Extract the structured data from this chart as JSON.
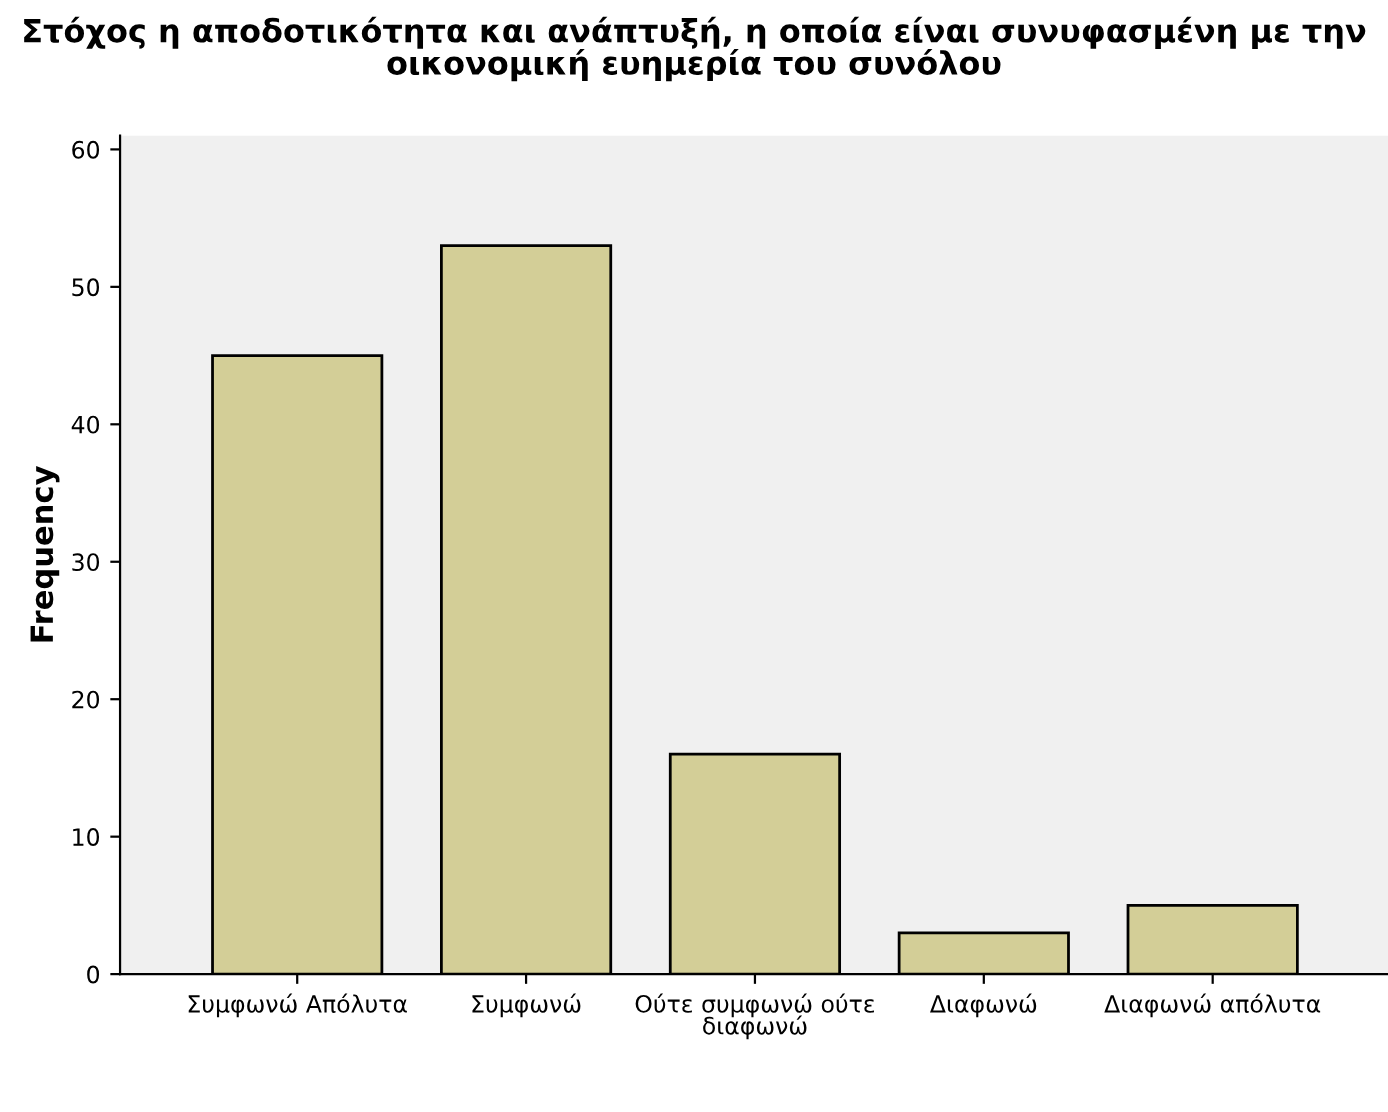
{
  "chart_data": {
    "type": "bar",
    "title": "Στόχος η αποδοτικότητα και ανάπτυξή, η οποία είναι συνυφασμένη με την\nοικονομική ευημερία του συνόλου",
    "ylabel": "Frequency",
    "categories": [
      "Συμφωνώ Απόλυτα",
      "Συμφωνώ",
      "Ούτε συμφωνώ ούτε\nδιαφωνώ",
      "Διαφωνώ",
      "Διαφωνώ απόλυτα"
    ],
    "values": [
      45,
      53,
      16,
      3,
      5
    ],
    "color": "#d3ce97",
    "ylim": [
      0,
      61
    ],
    "yticks": [
      0,
      10,
      20,
      30,
      40,
      50,
      60
    ],
    "grid": false
  }
}
